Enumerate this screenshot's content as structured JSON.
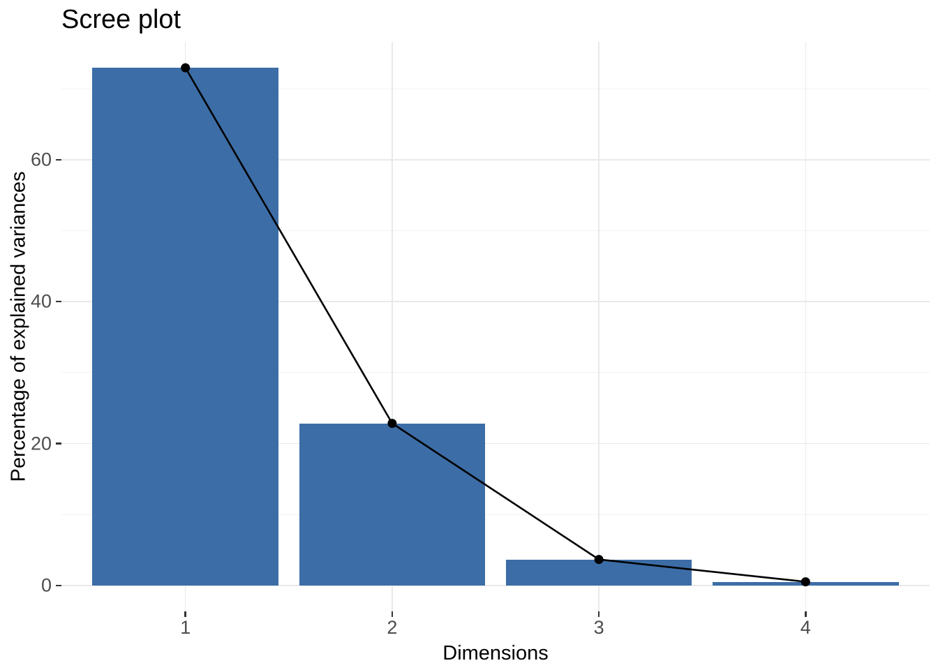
{
  "chart_data": {
    "type": "bar",
    "subtype": "bar-with-line-overlay",
    "title": "Scree plot",
    "xlabel": "Dimensions",
    "ylabel": "Percentage of explained variances",
    "categories": [
      "1",
      "2",
      "3",
      "4"
    ],
    "values": [
      72.96,
      22.85,
      3.67,
      0.52
    ],
    "series": [
      {
        "name": "explained-variance-bars",
        "type": "bar",
        "values": [
          72.96,
          22.85,
          3.67,
          0.52
        ]
      },
      {
        "name": "explained-variance-line",
        "type": "line",
        "values": [
          72.96,
          22.85,
          3.67,
          0.52
        ]
      }
    ],
    "yticks": {
      "major": [
        0,
        20,
        40,
        60
      ],
      "minor": [
        10,
        30,
        50,
        70
      ]
    },
    "ytick_labels": [
      "0",
      "20",
      "40",
      "60"
    ],
    "ylim": [
      -3.65,
      76.61
    ],
    "xlim": [
      0.4,
      4.6
    ],
    "grid": "major-and-minor",
    "legend": "none",
    "colors": {
      "bar_fill": "#3c6da6",
      "line": "#000000",
      "point": "#000000",
      "gridline_major": "#e9e9e9",
      "gridline_minor": "#f2f2f2",
      "tick_mark": "#333333",
      "axis_text": "#4d4d4d",
      "title_text": "#000000",
      "background": "#ffffff"
    }
  }
}
